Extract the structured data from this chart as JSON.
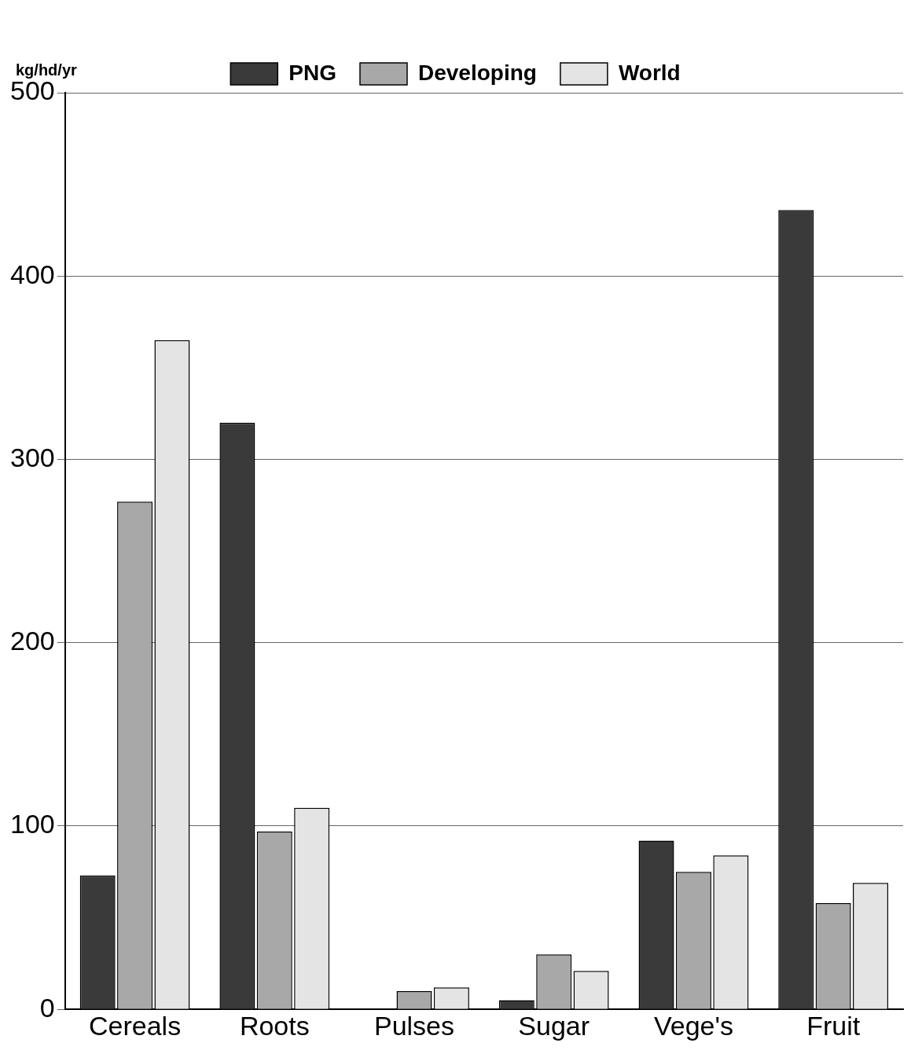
{
  "chart_data": {
    "type": "bar",
    "ylabel": "kg/hd/yr",
    "categories": [
      "Cereals",
      "Roots",
      "Pulses",
      "Sugar",
      "Vege's",
      "Fruit"
    ],
    "series": [
      {
        "name": "PNG",
        "color": "#3a3a3a",
        "values": [
          73,
          320,
          0,
          5,
          92,
          436
        ]
      },
      {
        "name": "Developing",
        "color": "#a8a8a8",
        "values": [
          277,
          97,
          10,
          30,
          75,
          58
        ]
      },
      {
        "name": "World",
        "color": "#e4e4e4",
        "values": [
          365,
          110,
          12,
          21,
          84,
          69
        ]
      }
    ],
    "ylim": [
      0,
      500
    ],
    "yticks": [
      0,
      100,
      200,
      300,
      400,
      500
    ],
    "grid": "y",
    "legend": "top"
  }
}
